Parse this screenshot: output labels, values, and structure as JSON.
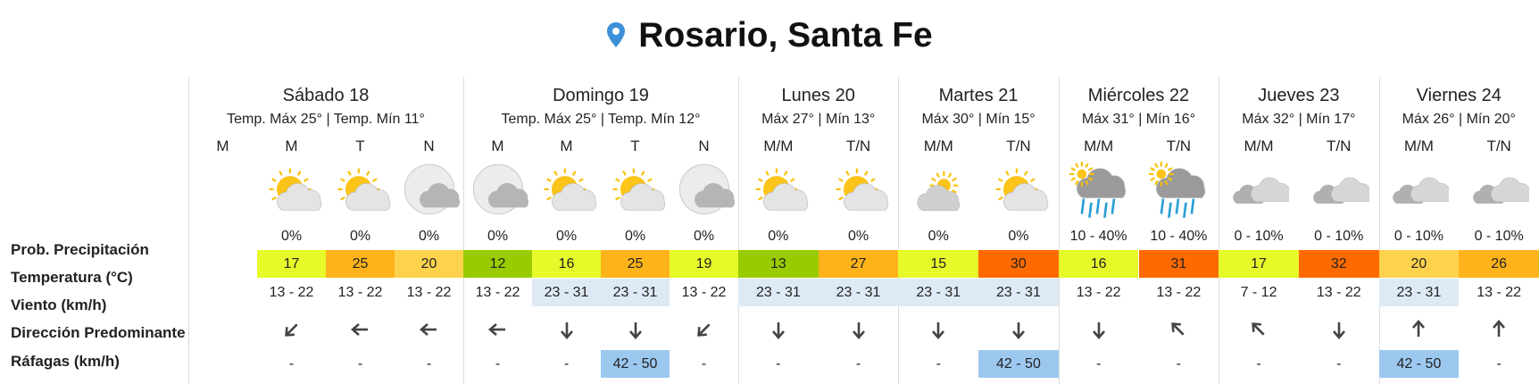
{
  "title": "Rosario, Santa Fe",
  "row_labels": [
    "Prob. Precipitación",
    "Temperatura (°C)",
    "Viento (km/h)",
    "Dirección Predominante",
    "Ráfagas (km/h)"
  ],
  "days": [
    {
      "name": "Sábado 18",
      "temps": "Temp. Máx 25° | Temp. Mín 11°",
      "periods": [
        {
          "label": "M"
        },
        {
          "label": "M",
          "icon": "sun-cloud",
          "precip": "0%",
          "temp": 17,
          "temp_color": "#e6fa2a",
          "wind": "13 - 22",
          "direction": 45,
          "gusts": "-"
        },
        {
          "label": "T",
          "icon": "sun-cloud",
          "precip": "0%",
          "temp": 25,
          "temp_color": "#ffb31a",
          "wind": "13 - 22",
          "direction": 90,
          "gusts": "-"
        },
        {
          "label": "N",
          "icon": "moon-cloud",
          "precip": "0%",
          "temp": 20,
          "temp_color": "#ffd24d",
          "wind": "13 - 22",
          "direction": 90,
          "gusts": "-"
        }
      ]
    },
    {
      "name": "Domingo 19",
      "temps": "Temp. Máx 25° | Temp. Mín 12°",
      "periods": [
        {
          "label": "M",
          "icon": "moon-cloud",
          "precip": "0%",
          "temp": 12,
          "temp_color": "#99cc00",
          "wind": "13 - 22",
          "direction": 90,
          "gusts": "-"
        },
        {
          "label": "M",
          "icon": "sun-cloud",
          "precip": "0%",
          "temp": 16,
          "temp_color": "#e6fa2a",
          "wind": "23 - 31",
          "wind_bg": "#ddeaf6",
          "direction": 0,
          "gusts": "-"
        },
        {
          "label": "T",
          "icon": "sun-cloud",
          "precip": "0%",
          "temp": 25,
          "temp_color": "#ffb31a",
          "wind": "23 - 31",
          "wind_bg": "#ddeaf6",
          "direction": 0,
          "gusts": "42 - 50",
          "gusts_bg": "#9cc8f0"
        },
        {
          "label": "N",
          "icon": "moon-cloud",
          "precip": "0%",
          "temp": 19,
          "temp_color": "#e6fa2a",
          "wind": "13 - 22",
          "direction": 45,
          "gusts": "-"
        }
      ]
    },
    {
      "name": "Lunes 20",
      "temps": "Máx 27° | Mín 13°",
      "periods": [
        {
          "label": "M/M",
          "icon": "sun-cloud",
          "precip": "0%",
          "temp": 13,
          "temp_color": "#99cc00",
          "wind": "23 - 31",
          "wind_bg": "#ddeaf6",
          "direction": 0,
          "gusts": "-"
        },
        {
          "label": "T/N",
          "icon": "sun-cloud",
          "precip": "0%",
          "temp": 27,
          "temp_color": "#ffb31a",
          "wind": "23 - 31",
          "wind_bg": "#ddeaf6",
          "direction": 0,
          "gusts": "-"
        }
      ]
    },
    {
      "name": "Martes 21",
      "temps": "Máx 30° | Mín 15°",
      "periods": [
        {
          "label": "M/M",
          "icon": "cloud-sun",
          "precip": "0%",
          "temp": 15,
          "temp_color": "#e6fa2a",
          "wind": "23 - 31",
          "wind_bg": "#ddeaf6",
          "direction": 0,
          "gusts": "-"
        },
        {
          "label": "T/N",
          "icon": "sun-cloud",
          "precip": "0%",
          "temp": 30,
          "temp_color": "#ff6a00",
          "wind": "23 - 31",
          "wind_bg": "#ddeaf6",
          "direction": 0,
          "gusts": "42 - 50",
          "gusts_bg": "#9cc8f0"
        }
      ]
    },
    {
      "name": "Miércoles 22",
      "temps": "Máx 31° | Mín 16°",
      "periods": [
        {
          "label": "M/M",
          "icon": "rain",
          "precip": "10 - 40%",
          "temp": 16,
          "temp_color": "#e6fa2a",
          "wind": "13 - 22",
          "direction": 0,
          "gusts": "-"
        },
        {
          "label": "T/N",
          "icon": "rain",
          "precip": "10 - 40%",
          "temp": 31,
          "temp_color": "#ff6a00",
          "wind": "13 - 22",
          "direction": 135,
          "gusts": "-"
        }
      ]
    },
    {
      "name": "Jueves 23",
      "temps": "Máx 32° | Mín 17°",
      "periods": [
        {
          "label": "M/M",
          "icon": "cloud",
          "precip": "0 - 10%",
          "temp": 17,
          "temp_color": "#e6fa2a",
          "wind": "7 - 12",
          "direction": 135,
          "gusts": "-"
        },
        {
          "label": "T/N",
          "icon": "cloud",
          "precip": "0 - 10%",
          "temp": 32,
          "temp_color": "#ff6a00",
          "wind": "13 - 22",
          "direction": 0,
          "gusts": "-"
        }
      ]
    },
    {
      "name": "Viernes 24",
      "temps": "Máx 26° | Mín 20°",
      "periods": [
        {
          "label": "M/M",
          "icon": "cloud",
          "precip": "0 - 10%",
          "temp": 20,
          "temp_color": "#ffd24d",
          "wind": "23 - 31",
          "wind_bg": "#ddeaf6",
          "direction": 180,
          "gusts": "42 - 50",
          "gusts_bg": "#9cc8f0"
        },
        {
          "label": "T/N",
          "icon": "cloud",
          "precip": "0 - 10%",
          "temp": 26,
          "temp_color": "#ffb31a",
          "wind": "13 - 22",
          "direction": 180,
          "gusts": "-"
        }
      ]
    }
  ]
}
